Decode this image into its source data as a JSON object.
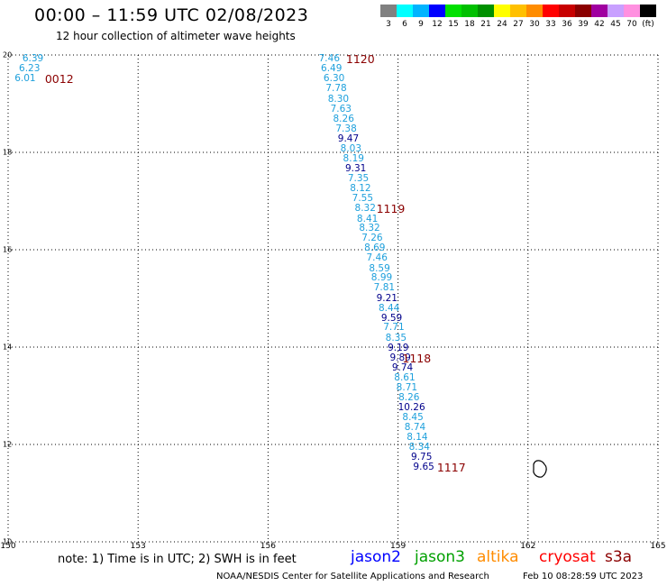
{
  "header": {
    "title": "00:00 – 11:59 UTC 02/08/2023",
    "subtitle": "12 hour collection of altimeter wave heights"
  },
  "colorbar": {
    "swatches": [
      "#808080",
      "#00ffff",
      "#00b4ff",
      "#0000ff",
      "#00e000",
      "#00c000",
      "#009000",
      "#ffff00",
      "#ffc000",
      "#ff8c00",
      "#ff0000",
      "#c80000",
      "#8b0000",
      "#a000a0",
      "#c8a0ff",
      "#ff90e0",
      "#000000"
    ],
    "labels": [
      "3",
      "6",
      "9",
      "12",
      "15",
      "18",
      "21",
      "24",
      "27",
      "30",
      "33",
      "36",
      "39",
      "42",
      "45",
      "70",
      "(ft)"
    ]
  },
  "map": {
    "lon_ticks": [
      "150",
      "153",
      "156",
      "159",
      "162",
      "165"
    ],
    "lat_ticks": [
      "20",
      "18",
      "16",
      "14",
      "12",
      "10"
    ],
    "lon_range": [
      150,
      165
    ],
    "lat_range": [
      10,
      20
    ],
    "grid": "dotted",
    "colors": {
      "light": "#1ea0dc",
      "dark": "#00008b",
      "pass_label": "#8b0000",
      "coast": "#000000"
    }
  },
  "observations": [
    {
      "v": "6.39",
      "lon": 150.33,
      "lat": 19.9,
      "c": "light"
    },
    {
      "v": "6.23",
      "lon": 150.25,
      "lat": 19.7,
      "c": "light"
    },
    {
      "v": "6.01",
      "lon": 150.15,
      "lat": 19.5,
      "c": "light"
    },
    {
      "v": "7.46",
      "lon": 157.17,
      "lat": 19.9,
      "c": "light"
    },
    {
      "v": "6.49",
      "lon": 157.22,
      "lat": 19.7,
      "c": "light"
    },
    {
      "v": "6.30",
      "lon": 157.28,
      "lat": 19.5,
      "c": "light"
    },
    {
      "v": "7.78",
      "lon": 157.33,
      "lat": 19.29,
      "c": "light"
    },
    {
      "v": "8.30",
      "lon": 157.38,
      "lat": 19.08,
      "c": "light"
    },
    {
      "v": "7.63",
      "lon": 157.44,
      "lat": 18.87,
      "c": "light"
    },
    {
      "v": "8.26",
      "lon": 157.5,
      "lat": 18.67,
      "c": "light"
    },
    {
      "v": "7.38",
      "lon": 157.56,
      "lat": 18.46,
      "c": "light"
    },
    {
      "v": "9.47",
      "lon": 157.61,
      "lat": 18.26,
      "c": "dark"
    },
    {
      "v": "8.03",
      "lon": 157.67,
      "lat": 18.05,
      "c": "light"
    },
    {
      "v": "8.19",
      "lon": 157.73,
      "lat": 17.85,
      "c": "light"
    },
    {
      "v": "9.31",
      "lon": 157.78,
      "lat": 17.65,
      "c": "dark"
    },
    {
      "v": "7.35",
      "lon": 157.84,
      "lat": 17.44,
      "c": "light"
    },
    {
      "v": "8.12",
      "lon": 157.89,
      "lat": 17.24,
      "c": "light"
    },
    {
      "v": "7.55",
      "lon": 157.94,
      "lat": 17.03,
      "c": "light"
    },
    {
      "v": "8.32",
      "lon": 158.0,
      "lat": 16.83,
      "c": "light"
    },
    {
      "v": "8.41",
      "lon": 158.05,
      "lat": 16.62,
      "c": "light"
    },
    {
      "v": "8.32",
      "lon": 158.1,
      "lat": 16.42,
      "c": "light"
    },
    {
      "v": "7.26",
      "lon": 158.16,
      "lat": 16.22,
      "c": "light"
    },
    {
      "v": "8.69",
      "lon": 158.22,
      "lat": 16.01,
      "c": "light"
    },
    {
      "v": "7.46",
      "lon": 158.27,
      "lat": 15.81,
      "c": "light"
    },
    {
      "v": "8.59",
      "lon": 158.33,
      "lat": 15.6,
      "c": "light"
    },
    {
      "v": "8.99",
      "lon": 158.38,
      "lat": 15.4,
      "c": "light"
    },
    {
      "v": "7.81",
      "lon": 158.44,
      "lat": 15.2,
      "c": "light"
    },
    {
      "v": "9.21",
      "lon": 158.5,
      "lat": 14.99,
      "c": "dark"
    },
    {
      "v": "8.44",
      "lon": 158.55,
      "lat": 14.78,
      "c": "light"
    },
    {
      "v": "9.59",
      "lon": 158.61,
      "lat": 14.58,
      "c": "dark"
    },
    {
      "v": "7.71",
      "lon": 158.66,
      "lat": 14.38,
      "c": "light"
    },
    {
      "v": "8.35",
      "lon": 158.71,
      "lat": 14.17,
      "c": "light"
    },
    {
      "v": "9.19",
      "lon": 158.76,
      "lat": 13.97,
      "c": "dark"
    },
    {
      "v": "9.89",
      "lon": 158.81,
      "lat": 13.76,
      "c": "dark"
    },
    {
      "v": "9.74",
      "lon": 158.86,
      "lat": 13.56,
      "c": "dark"
    },
    {
      "v": "8.61",
      "lon": 158.91,
      "lat": 13.35,
      "c": "light"
    },
    {
      "v": "8.71",
      "lon": 158.96,
      "lat": 13.15,
      "c": "light"
    },
    {
      "v": "8.26",
      "lon": 159.01,
      "lat": 12.95,
      "c": "light"
    },
    {
      "v": "10.26",
      "lon": 159.0,
      "lat": 12.75,
      "c": "dark"
    },
    {
      "v": "8.45",
      "lon": 159.1,
      "lat": 12.54,
      "c": "light"
    },
    {
      "v": "8.74",
      "lon": 159.15,
      "lat": 12.33,
      "c": "light"
    },
    {
      "v": "8.14",
      "lon": 159.2,
      "lat": 12.13,
      "c": "light"
    },
    {
      "v": "8.34",
      "lon": 159.25,
      "lat": 11.93,
      "c": "light"
    },
    {
      "v": "9.75",
      "lon": 159.3,
      "lat": 11.72,
      "c": "dark"
    },
    {
      "v": "9.65",
      "lon": 159.35,
      "lat": 11.52,
      "c": "dark"
    }
  ],
  "pass_times": [
    {
      "label": "0012",
      "lon": 150.85,
      "lat": 19.5
    },
    {
      "label": "1120",
      "lon": 157.8,
      "lat": 19.9
    },
    {
      "label": "1119",
      "lon": 158.5,
      "lat": 16.83
    },
    {
      "label": "1118",
      "lon": 159.1,
      "lat": 13.76
    },
    {
      "label": "1117",
      "lon": 159.9,
      "lat": 11.52
    }
  ],
  "footer": {
    "note": "note:  1) Time is in UTC;  2) SWH is in feet",
    "credit": "NOAA/NESDIS Center for Satellite Applications and Research",
    "stamp": "Feb 10 08:28:59 UTC 2023",
    "satellites": [
      {
        "name": "jason2",
        "color": "#0000ff"
      },
      {
        "name": "jason3",
        "color": "#00a000"
      },
      {
        "name": "altika",
        "color": "#ff8c00"
      },
      {
        "name": "cryosat",
        "color": "#ff0000"
      },
      {
        "name": "s3a",
        "color": "#8b0000"
      }
    ]
  }
}
